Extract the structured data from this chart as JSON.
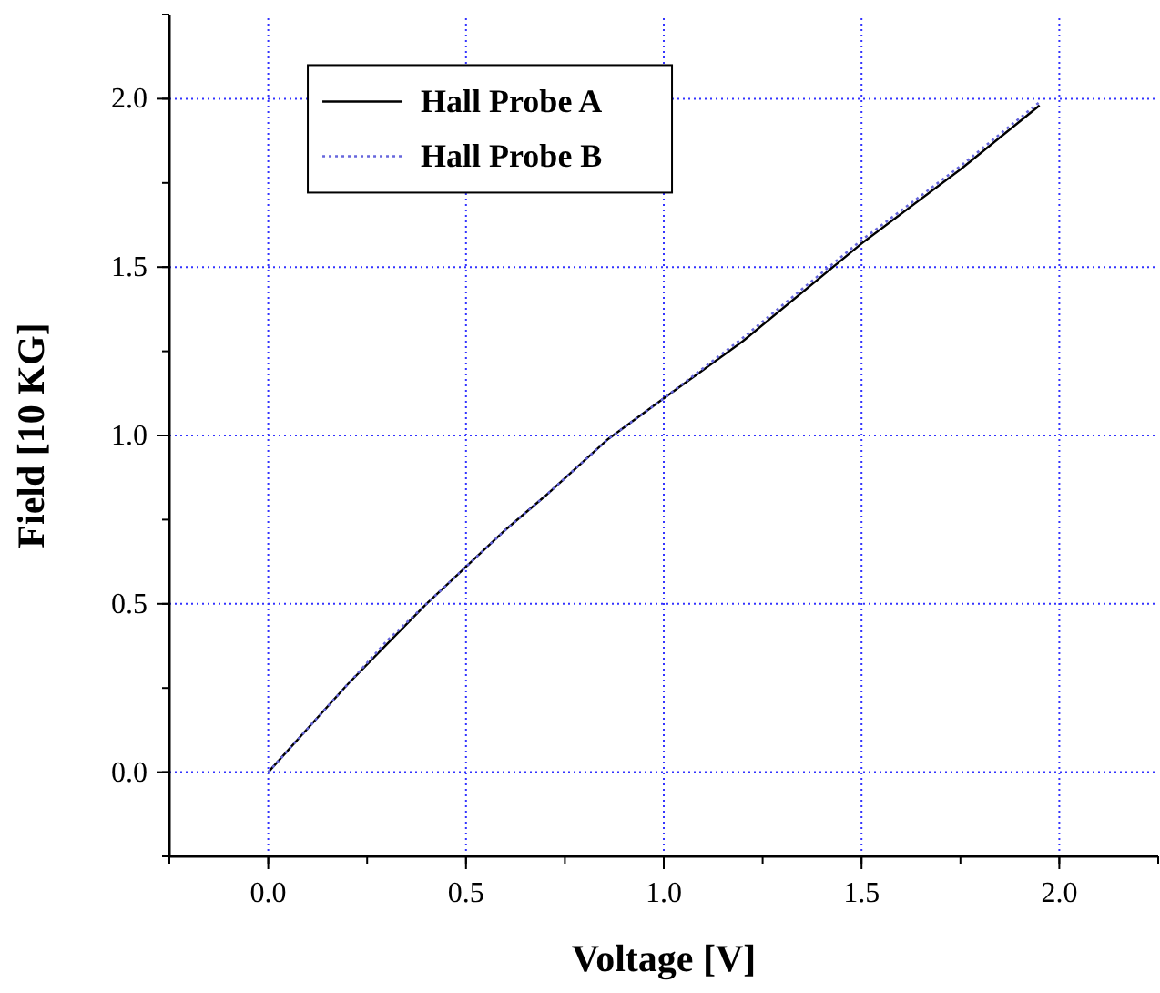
{
  "chart_data": {
    "type": "line",
    "xlabel": "Voltage [V]",
    "ylabel": "Field [10 KG]",
    "xlim": [
      -0.25,
      2.25
    ],
    "ylim": [
      -0.25,
      2.25
    ],
    "xticks": [
      {
        "value": 0,
        "label": "0.0"
      },
      0.5,
      {
        "value": 1,
        "label": "1.0"
      },
      1.5,
      {
        "value": 2,
        "label": "2.0"
      }
    ],
    "yticks": [
      {
        "value": 0,
        "label": "0.0"
      },
      0.5,
      {
        "value": 1,
        "label": "1.0"
      },
      1.5,
      {
        "value": 2,
        "label": "2.0"
      }
    ],
    "grid": true,
    "legend": "top left",
    "series": [
      {
        "name": "Hall Probe A",
        "color": "#000000",
        "line_style": "solid",
        "x": [
          0,
          0.1,
          0.2,
          0.3,
          0.4,
          0.5,
          0.6,
          0.7,
          0.86,
          1.0,
          1.2,
          1.5,
          1.75,
          1.95
        ],
        "values": [
          0,
          0.13,
          0.26,
          0.38,
          0.5,
          0.61,
          0.72,
          0.82,
          0.99,
          1.11,
          1.28,
          1.57,
          1.79,
          1.98
        ]
      },
      {
        "name": "Hall Probe B",
        "color": "#6666dd",
        "line_style": "dotted",
        "x": [
          0,
          0.1,
          0.2,
          0.3,
          0.4,
          0.5,
          0.6,
          0.7,
          0.86,
          1.0,
          1.2,
          1.5,
          1.75,
          1.95
        ],
        "values": [
          0,
          0.13,
          0.26,
          0.39,
          0.5,
          0.61,
          0.72,
          0.82,
          0.99,
          1.11,
          1.29,
          1.58,
          1.8,
          1.99
        ]
      }
    ]
  }
}
